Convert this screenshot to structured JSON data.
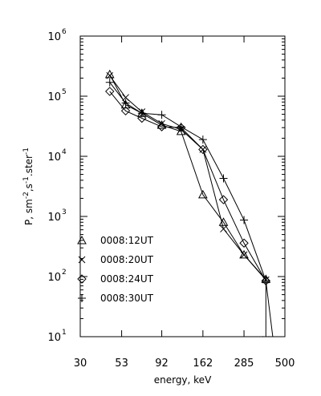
{
  "chart_data": {
    "type": "line",
    "xlabel": "energy, keV",
    "ylabel_parts": [
      "P, sm",
      "-2",
      ",s",
      "-1",
      ".ster",
      "-1"
    ],
    "x_scale": "log",
    "y_scale": "log",
    "xlim": [
      30,
      500
    ],
    "ylim": [
      10,
      1000000
    ],
    "x_ticks": [
      30,
      53,
      92,
      162,
      285,
      500
    ],
    "y_tick_mantissa": "10",
    "y_tick_exponents": [
      "1",
      "2",
      "3",
      "4",
      "5",
      "6"
    ],
    "legend_position": "lower-left",
    "series": [
      {
        "name": "0008:12UT",
        "marker": "triangle",
        "points": [
          [
            45,
            230000
          ],
          [
            56,
            72000
          ],
          [
            70,
            52000
          ],
          [
            92,
            33000
          ],
          [
            120,
            26000
          ],
          [
            162,
            2300
          ],
          [
            215,
            800
          ],
          [
            285,
            230
          ],
          [
            385,
            90
          ]
        ]
      },
      {
        "name": "0008:20UT",
        "marker": "x",
        "points": [
          [
            45,
            220000
          ],
          [
            56,
            95000
          ],
          [
            70,
            55000
          ],
          [
            92,
            35000
          ],
          [
            120,
            28000
          ],
          [
            162,
            13000
          ],
          [
            215,
            620
          ],
          [
            285,
            230
          ],
          [
            385,
            88
          ],
          [
            385,
            9
          ],
          [
            430,
            7
          ]
        ]
      },
      {
        "name": "0008:24UT",
        "marker": "diamond",
        "points": [
          [
            45,
            120000
          ],
          [
            56,
            57000
          ],
          [
            70,
            43000
          ],
          [
            92,
            31000
          ],
          [
            120,
            30000
          ],
          [
            162,
            13000
          ],
          [
            215,
            1900
          ],
          [
            285,
            360
          ],
          [
            385,
            85
          ]
        ]
      },
      {
        "name": "0008:30UT",
        "marker": "plus",
        "points": [
          [
            45,
            170000
          ],
          [
            56,
            77000
          ],
          [
            70,
            52000
          ],
          [
            92,
            49000
          ],
          [
            120,
            31000
          ],
          [
            162,
            19000
          ],
          [
            215,
            4300
          ],
          [
            285,
            870
          ],
          [
            385,
            85
          ],
          [
            430,
            7
          ]
        ]
      }
    ]
  }
}
